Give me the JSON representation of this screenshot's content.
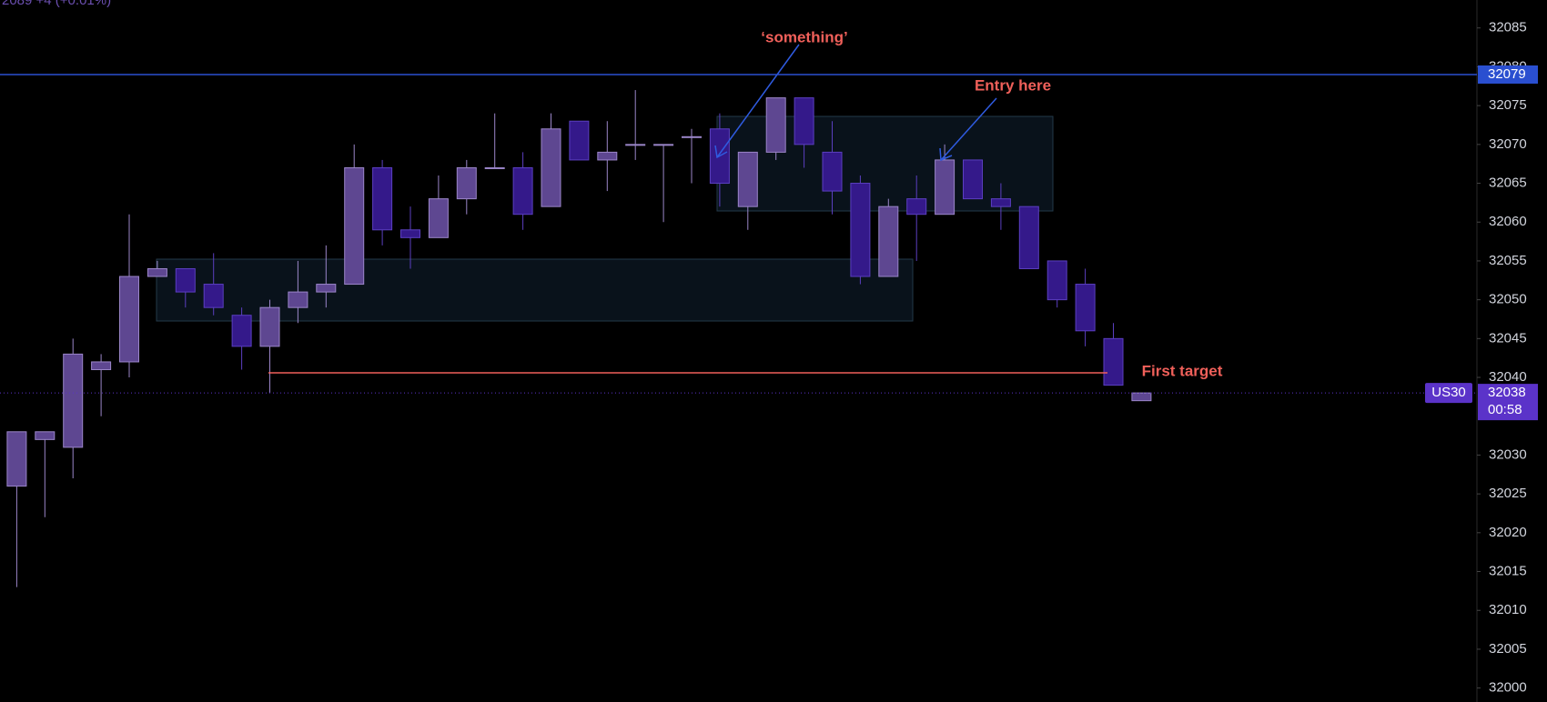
{
  "chart_data": {
    "type": "candlestick",
    "header_text": "2089 +4 (+0.01%)",
    "annotations": [
      "‘something’",
      "Entry here",
      "First target"
    ],
    "open": [
      32026,
      32032,
      32031,
      32041,
      32042,
      32053,
      32054,
      32052,
      32048,
      32044,
      32049,
      32051,
      32052,
      32067,
      32059,
      32058,
      32063,
      32067,
      32067,
      32062,
      32073,
      32068,
      32070,
      32070,
      32071,
      32072,
      32062,
      32069,
      32076,
      32069,
      32065,
      32053,
      32063,
      32061,
      32068,
      32063,
      32062,
      32055,
      32052,
      32045,
      32037
    ],
    "high": [
      32033,
      32033,
      32045,
      32043,
      32061,
      32055,
      32054,
      32056,
      32049,
      32050,
      32055,
      32057,
      32070,
      32068,
      32062,
      32066,
      32068,
      32074,
      32069,
      32074,
      32073,
      32073,
      32077,
      32070,
      32072,
      32074,
      32069,
      32076,
      32076,
      32073,
      32066,
      32063,
      32066,
      32070,
      32068,
      32065,
      32062,
      32055,
      32054,
      32047,
      32038
    ],
    "low": [
      32013,
      32022,
      32027,
      32035,
      32040,
      32053,
      32049,
      32048,
      32041,
      32038,
      32047,
      32049,
      32052,
      32057,
      32054,
      32058,
      32061,
      32067,
      32059,
      32062,
      32068,
      32064,
      32068,
      32060,
      32065,
      32062,
      32059,
      32068,
      32067,
      32061,
      32052,
      32053,
      32055,
      32061,
      32063,
      32059,
      32054,
      32049,
      32044,
      32039,
      32037
    ],
    "close": [
      32033,
      32033,
      32043,
      32042,
      32053,
      32054,
      32051,
      32049,
      32044,
      32049,
      32051,
      32052,
      32067,
      32059,
      32058,
      32063,
      32067,
      32067,
      32061,
      32072,
      32068,
      32069,
      32070,
      32070,
      32071,
      32065,
      32069,
      32076,
      32070,
      32064,
      32053,
      32062,
      32061,
      32068,
      32063,
      32062,
      32054,
      32050,
      32046,
      32039,
      32038
    ],
    "up_color": "#5e4791",
    "down_color": "#34198a",
    "up_border": "#9b86c9",
    "down_border": "#5b3fc0",
    "ylim": [
      31998.2,
      32088.6
    ],
    "yticks": [
      32000,
      32005,
      32010,
      32015,
      32020,
      32025,
      32030,
      32040,
      32045,
      32050,
      32055,
      32060,
      32065,
      32070,
      32075,
      32080,
      32085
    ],
    "price_line": {
      "value": 32079,
      "color": "#2a4fd0"
    },
    "current": {
      "symbol": "US30",
      "value": 32038,
      "countdown": "00:58",
      "color": "#5b33c9"
    }
  }
}
